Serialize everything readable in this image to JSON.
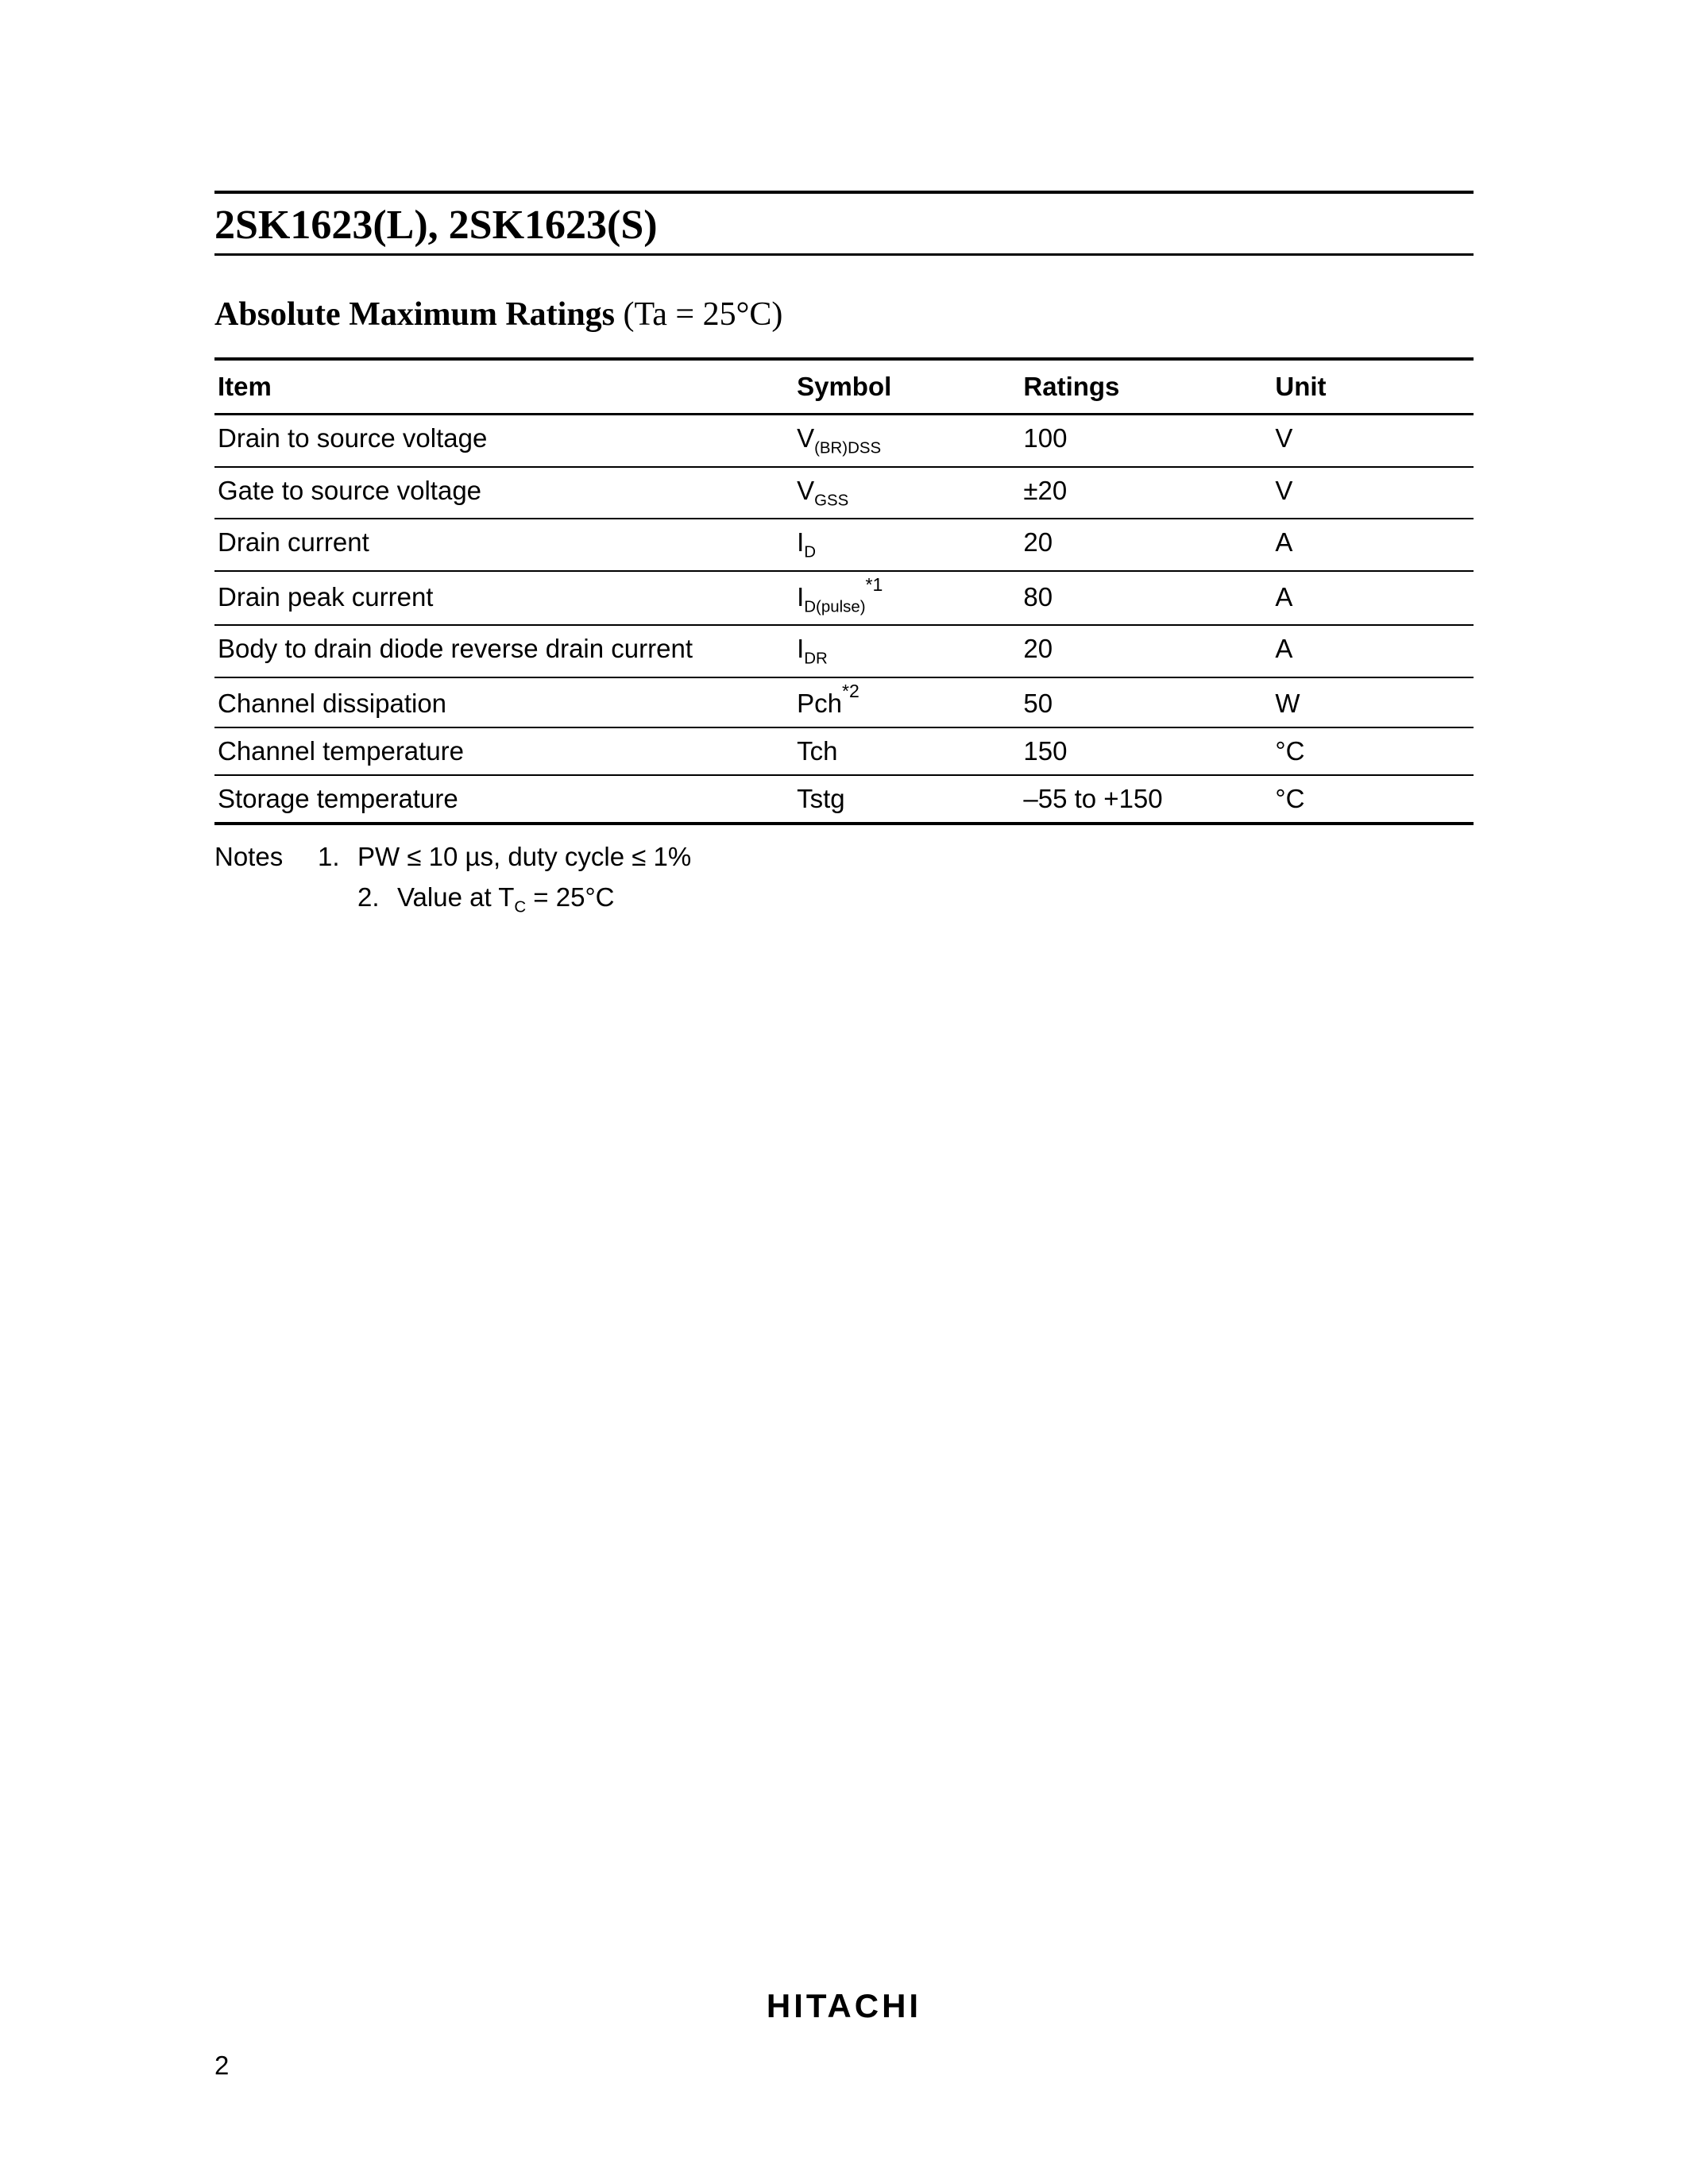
{
  "title": "2SK1623(L), 2SK1623(S)",
  "section": {
    "heading_bold": "Absolute Maximum Ratings",
    "heading_cond": " (Ta = 25°C)"
  },
  "table": {
    "headers": {
      "item": "Item",
      "symbol": "Symbol",
      "ratings": "Ratings",
      "unit": "Unit"
    },
    "rows": [
      {
        "item": "Drain to source voltage",
        "sym_main": "V",
        "sym_sub": "(BR)DSS",
        "sym_sup": "",
        "ratings": "100",
        "unit": "V"
      },
      {
        "item": "Gate to source voltage",
        "sym_main": "V",
        "sym_sub": "GSS",
        "sym_sup": "",
        "ratings": "±20",
        "unit": "V"
      },
      {
        "item": "Drain current",
        "sym_main": "I",
        "sym_sub": "D",
        "sym_sup": "",
        "ratings": "20",
        "unit": "A"
      },
      {
        "item": "Drain peak current",
        "sym_main": "I",
        "sym_sub": "D(pulse)",
        "sym_sup": "*1",
        "ratings": "80",
        "unit": "A"
      },
      {
        "item": "Body to drain diode reverse drain current",
        "sym_main": "I",
        "sym_sub": "DR",
        "sym_sup": "",
        "ratings": "20",
        "unit": "A"
      },
      {
        "item": "Channel dissipation",
        "sym_main": "Pch",
        "sym_sub": "",
        "sym_sup": "*2",
        "ratings": "50",
        "unit": "W"
      },
      {
        "item": "Channel temperature",
        "sym_main": "Tch",
        "sym_sub": "",
        "sym_sup": "",
        "ratings": "150",
        "unit": "°C"
      },
      {
        "item": "Storage temperature",
        "sym_main": "Tstg",
        "sym_sub": "",
        "sym_sup": "",
        "ratings": "–55 to +150",
        "unit": "°C"
      }
    ]
  },
  "notes": {
    "label": "Notes",
    "items": [
      {
        "num": "1.",
        "text": "PW ≤ 10 µs, duty cycle ≤ 1%"
      },
      {
        "num": "2.",
        "text_pre": "Value at T",
        "text_sub": "C",
        "text_post": " =  25°C"
      }
    ]
  },
  "footer": {
    "logo": "HITACHI",
    "page": "2"
  }
}
